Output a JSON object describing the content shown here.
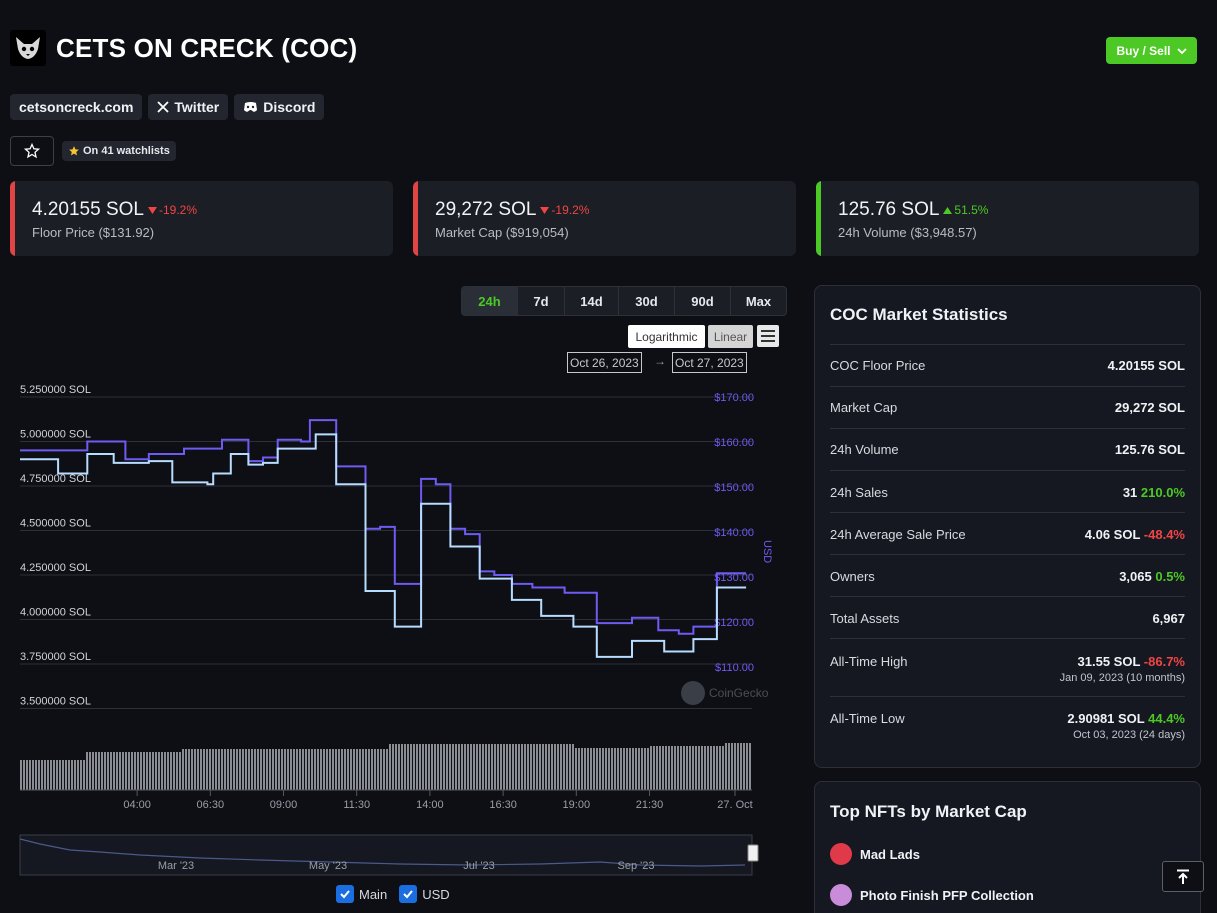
{
  "header": {
    "title": "CETS ON CRECK (COC)",
    "logo_icon": "cat-logo-icon"
  },
  "buy_sell_label": "Buy / Sell",
  "links": [
    {
      "label": "cetsoncreck.com"
    },
    {
      "label": "Twitter",
      "icon": "x-icon"
    },
    {
      "label": "Discord",
      "icon": "discord-icon"
    }
  ],
  "watchlist_label": "On 41 watchlists",
  "stats": [
    {
      "value": "4.20155 SOL",
      "change": "-19.2%",
      "direction": "down",
      "label": "Floor Price ($131.92)",
      "color": "#e04444"
    },
    {
      "value": "29,272 SOL",
      "change": "-19.2%",
      "direction": "down",
      "label": "Market Cap ($919,054)",
      "color": "#e04444"
    },
    {
      "value": "125.76 SOL",
      "change": "51.5%",
      "direction": "up",
      "label": "24h Volume ($3,948.57)",
      "color": "#4cc924"
    }
  ],
  "ranges": [
    "24h",
    "7d",
    "14d",
    "30d",
    "90d",
    "Max"
  ],
  "active_range": "24h",
  "scales": {
    "log": "Logarithmic",
    "linear": "Linear"
  },
  "dates": {
    "from": "Oct 26, 2023",
    "to": "Oct 27, 2023"
  },
  "chart_data": {
    "type": "line",
    "y_left_ticks": [
      "5.250000 SOL",
      "5.000000 SOL",
      "4.750000 SOL",
      "4.500000 SOL",
      "4.250000 SOL",
      "4.000000 SOL",
      "3.750000 SOL",
      "3.500000 SOL"
    ],
    "y_left_values": [
      5.25,
      5.0,
      4.75,
      4.5,
      4.25,
      4.0,
      3.75,
      3.5
    ],
    "y_right_ticks": [
      "$170.00",
      "$160.00",
      "$150.00",
      "$140.00",
      "$130.00",
      "$120.00",
      "$110.00"
    ],
    "y_right_values": [
      170,
      160,
      150,
      140,
      130,
      120,
      110
    ],
    "y_right_label": "USD",
    "x_ticks": [
      "04:00",
      "06:30",
      "09:00",
      "11:30",
      "14:00",
      "16:30",
      "19:00",
      "21:30",
      "27. Oct"
    ],
    "x_tick_hours": [
      4,
      6.5,
      9,
      11.5,
      14,
      16.5,
      19,
      21.5,
      24
    ],
    "x_range_hours": [
      0,
      25
    ],
    "ylim_sol": [
      3.5,
      5.25
    ],
    "ylim_usd": [
      110,
      170
    ],
    "watermark": "CoinGecko",
    "series": [
      {
        "name": "Main",
        "color": "#b8dcff",
        "points": [
          [
            0,
            4.9
          ],
          [
            1.3,
            4.9
          ],
          [
            1.3,
            4.82
          ],
          [
            2.3,
            4.82
          ],
          [
            2.3,
            4.93
          ],
          [
            3.2,
            4.93
          ],
          [
            3.2,
            4.88
          ],
          [
            4.4,
            4.88
          ],
          [
            4.4,
            4.89
          ],
          [
            5.2,
            4.89
          ],
          [
            5.2,
            4.77
          ],
          [
            6.4,
            4.77
          ],
          [
            6.4,
            4.76
          ],
          [
            6.6,
            4.76
          ],
          [
            6.6,
            4.82
          ],
          [
            7.2,
            4.82
          ],
          [
            7.2,
            4.93
          ],
          [
            7.8,
            4.93
          ],
          [
            7.8,
            4.87
          ],
          [
            8.3,
            4.87
          ],
          [
            8.3,
            4.88
          ],
          [
            8.8,
            4.88
          ],
          [
            8.8,
            4.96
          ],
          [
            10.1,
            4.96
          ],
          [
            10.1,
            5.04
          ],
          [
            10.8,
            5.04
          ],
          [
            10.8,
            4.76
          ],
          [
            11.8,
            4.76
          ],
          [
            11.8,
            4.16
          ],
          [
            12.8,
            4.16
          ],
          [
            12.8,
            3.96
          ],
          [
            13.7,
            3.96
          ],
          [
            13.7,
            4.65
          ],
          [
            14.7,
            4.65
          ],
          [
            14.7,
            4.41
          ],
          [
            15.7,
            4.41
          ],
          [
            15.7,
            4.23
          ],
          [
            16.8,
            4.23
          ],
          [
            16.8,
            4.11
          ],
          [
            17.8,
            4.11
          ],
          [
            17.8,
            4.02
          ],
          [
            18.9,
            4.02
          ],
          [
            18.9,
            3.96
          ],
          [
            19.7,
            3.96
          ],
          [
            19.7,
            3.79
          ],
          [
            20.9,
            3.79
          ],
          [
            20.9,
            3.88
          ],
          [
            22.0,
            3.88
          ],
          [
            22.0,
            3.82
          ],
          [
            23.0,
            3.82
          ],
          [
            23.0,
            3.89
          ],
          [
            23.8,
            3.89
          ],
          [
            23.8,
            4.18
          ],
          [
            24.8,
            4.18
          ]
        ]
      },
      {
        "name": "USD",
        "color": "#6d5bf2",
        "points": [
          [
            0,
            4.95
          ],
          [
            2.3,
            4.95
          ],
          [
            2.3,
            5.0
          ],
          [
            3.6,
            5.0
          ],
          [
            3.6,
            4.9
          ],
          [
            4.4,
            4.9
          ],
          [
            4.4,
            4.93
          ],
          [
            5.6,
            4.93
          ],
          [
            5.6,
            4.96
          ],
          [
            6.9,
            4.96
          ],
          [
            6.9,
            5.01
          ],
          [
            7.8,
            5.01
          ],
          [
            7.8,
            4.89
          ],
          [
            8.3,
            4.89
          ],
          [
            8.3,
            4.91
          ],
          [
            8.8,
            4.91
          ],
          [
            8.8,
            5.01
          ],
          [
            9.6,
            5.01
          ],
          [
            9.6,
            5.0
          ],
          [
            9.9,
            5.0
          ],
          [
            9.9,
            5.12
          ],
          [
            10.8,
            5.12
          ],
          [
            10.8,
            4.86
          ],
          [
            11.8,
            4.86
          ],
          [
            11.8,
            4.51
          ],
          [
            12.3,
            4.51
          ],
          [
            12.3,
            4.52
          ],
          [
            12.8,
            4.52
          ],
          [
            12.8,
            4.2
          ],
          [
            13.7,
            4.2
          ],
          [
            13.7,
            4.79
          ],
          [
            14.2,
            4.79
          ],
          [
            14.2,
            4.76
          ],
          [
            14.7,
            4.76
          ],
          [
            14.7,
            4.51
          ],
          [
            15.2,
            4.51
          ],
          [
            15.2,
            4.48
          ],
          [
            15.7,
            4.48
          ],
          [
            15.7,
            4.27
          ],
          [
            16.2,
            4.27
          ],
          [
            16.2,
            4.25
          ],
          [
            16.8,
            4.25
          ],
          [
            16.8,
            4.2
          ],
          [
            17.5,
            4.2
          ],
          [
            17.5,
            4.18
          ],
          [
            18.6,
            4.18
          ],
          [
            18.6,
            4.15
          ],
          [
            19.7,
            4.15
          ],
          [
            19.7,
            3.98
          ],
          [
            20.9,
            3.98
          ],
          [
            20.9,
            4.01
          ],
          [
            21.8,
            4.01
          ],
          [
            21.8,
            3.94
          ],
          [
            22.5,
            3.94
          ],
          [
            22.5,
            3.92
          ],
          [
            23.0,
            3.92
          ],
          [
            23.0,
            3.96
          ],
          [
            23.8,
            3.96
          ],
          [
            23.8,
            4.26
          ],
          [
            24.8,
            4.26
          ]
        ]
      }
    ],
    "navigator_ticks": [
      "Mar '23",
      "May '23",
      "Jul '23",
      "Sep '23"
    ],
    "legend": [
      "Main",
      "USD"
    ]
  },
  "market_stats": {
    "title": "COC Market Statistics",
    "rows": [
      {
        "label": "COC Floor Price",
        "value": "4.20155 SOL"
      },
      {
        "label": "Market Cap",
        "value": "29,272 SOL"
      },
      {
        "label": "24h Volume",
        "value": "125.76 SOL"
      },
      {
        "label": "24h Sales",
        "value": "31",
        "change": "210.0%",
        "dir": "up"
      },
      {
        "label": "24h Average Sale Price",
        "value": "4.06 SOL",
        "change": "-48.4%",
        "dir": "down"
      },
      {
        "label": "Owners",
        "value": "3,065",
        "change": "0.5%",
        "dir": "up"
      },
      {
        "label": "Total Assets",
        "value": "6,967"
      },
      {
        "label": "All-Time High",
        "value": "31.55 SOL",
        "change": "-86.7%",
        "dir": "down",
        "sub": "Jan 09, 2023 (10 months)"
      },
      {
        "label": "All-Time Low",
        "value": "2.90981 SOL",
        "change": "44.4%",
        "dir": "up",
        "sub": "Oct 03, 2023 (24 days)"
      }
    ]
  },
  "top_nfts": {
    "title": "Top NFTs by Market Cap",
    "items": [
      {
        "name": "Mad Lads",
        "color": "#e03a4a"
      },
      {
        "name": "Photo Finish PFP Collection",
        "color": "#c98cd8"
      }
    ]
  }
}
